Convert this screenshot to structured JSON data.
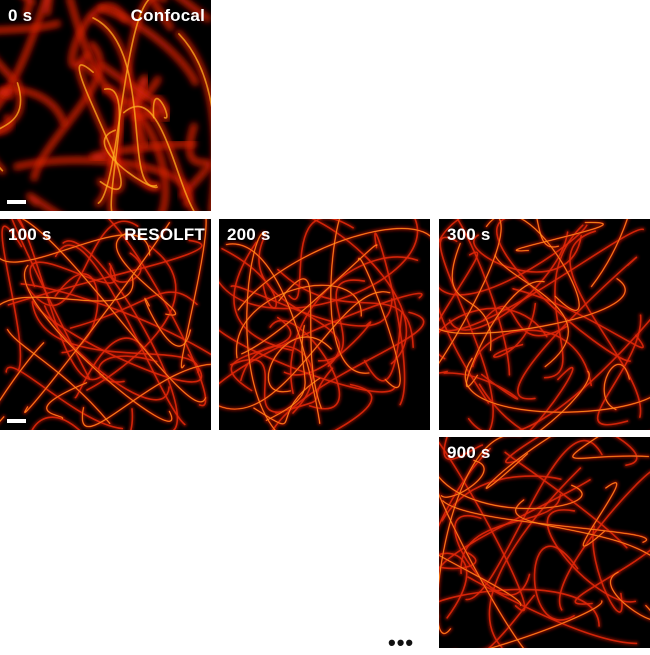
{
  "panels": [
    {
      "time": "0 s",
      "mode": "Confocal",
      "scalebar": true,
      "style": "confocal"
    },
    {
      "time": "100 s",
      "mode": "RESOLFT",
      "scalebar": true,
      "style": "resolft"
    },
    {
      "time": "200 s",
      "mode": "",
      "scalebar": false,
      "style": "resolft"
    },
    {
      "time": "300 s",
      "mode": "",
      "scalebar": false,
      "style": "resolft"
    },
    {
      "time": "900 s",
      "mode": "",
      "scalebar": false,
      "style": "resolft"
    }
  ],
  "ellipsis": "•••",
  "colors": {
    "background": "#000000",
    "filament_dim": "#7a0a00",
    "filament_mid": "#e0280a",
    "filament_bright": "#ffb020",
    "label": "#ffffff"
  }
}
